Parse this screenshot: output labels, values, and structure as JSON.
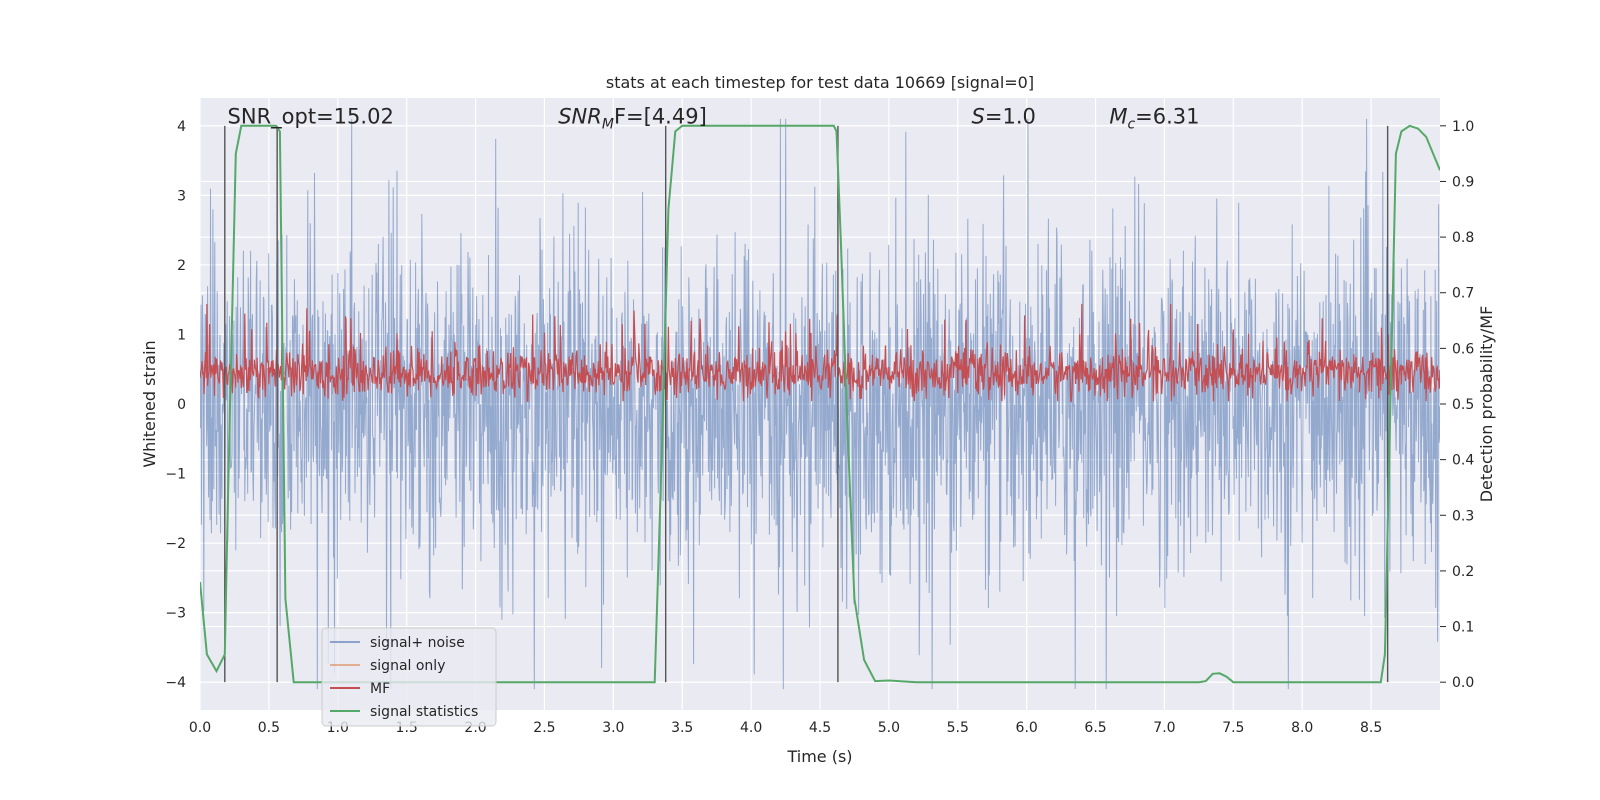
{
  "chart_data": {
    "type": "line",
    "title": "stats at each timestep for test data 10669 [signal=0]",
    "xlabel": "Time (s)",
    "ylabel_left": "Whitened strain",
    "ylabel_right": "Detection probability/MF",
    "xlim": [
      0,
      9.0
    ],
    "ylim_left": [
      -4.4,
      4.4
    ],
    "ylim_right": [
      -0.05,
      1.05
    ],
    "xticks": [
      0.0,
      0.5,
      1.0,
      1.5,
      2.0,
      2.5,
      3.0,
      3.5,
      4.0,
      4.5,
      5.0,
      5.5,
      6.0,
      6.5,
      7.0,
      7.5,
      8.0,
      8.5
    ],
    "xtick_labels": [
      "0.0",
      "0.5",
      "1.0",
      "1.5",
      "2.0",
      "2.5",
      "3.0",
      "3.5",
      "4.0",
      "4.5",
      "5.0",
      "5.5",
      "6.0",
      "6.5",
      "7.0",
      "7.5",
      "8.0",
      "8.5"
    ],
    "yticks_left": [
      -4,
      -3,
      -2,
      -1,
      0,
      1,
      2,
      3,
      4
    ],
    "ytick_labels_left": [
      "−4",
      "−3",
      "−2",
      "−1",
      "0",
      "1",
      "2",
      "3",
      "4"
    ],
    "yticks_right": [
      0.0,
      0.1,
      0.2,
      0.3,
      0.4,
      0.5,
      0.6,
      0.7,
      0.8,
      0.9,
      1.0
    ],
    "ytick_labels_right": [
      "0.0",
      "0.1",
      "0.2",
      "0.3",
      "0.4",
      "0.5",
      "0.6",
      "0.7",
      "0.8",
      "0.9",
      "1.0"
    ],
    "annotations": [
      {
        "name": "snr-opt",
        "text": "SNR_opt=15.02",
        "x": 0.2,
        "y": 4.15
      },
      {
        "name": "snr-mf",
        "prefix": "SNR",
        "sub": "M",
        "suffix": "F=[4.49]",
        "x": 2.6,
        "y": 4.15
      },
      {
        "name": "s-stat",
        "prefix": "S",
        "suffix": "=1.0",
        "x": 5.6,
        "y": 4.15
      },
      {
        "name": "mc",
        "prefix": "M",
        "sub": "c",
        "suffix": "=6.31",
        "x": 6.6,
        "y": 4.15
      }
    ],
    "vertical_lines": [
      0.18,
      0.56,
      3.38,
      4.63,
      8.62
    ],
    "series": [
      {
        "name": "signal+ noise",
        "color": "#4c72b0",
        "axis": "left",
        "description": "whitened noise, amplitude approx ±2.5, peaks to ±4"
      },
      {
        "name": "signal only",
        "color": "#dd8452",
        "axis": "left",
        "description": "not visible (no signal)"
      },
      {
        "name": "MF",
        "color": "#c44e52",
        "axis": "right",
        "description": "matched filter output, approx 0.5 to 0.65"
      },
      {
        "name": "signal statistics",
        "color": "#55a868",
        "axis": "right",
        "x": [
          0.0,
          0.05,
          0.12,
          0.18,
          0.2,
          0.26,
          0.3,
          0.35,
          0.4,
          0.45,
          0.5,
          0.55,
          0.58,
          0.62,
          0.68,
          0.75,
          1.0,
          2.0,
          3.0,
          3.3,
          3.35,
          3.4,
          3.45,
          3.5,
          3.6,
          4.0,
          4.5,
          4.6,
          4.62,
          4.65,
          4.7,
          4.75,
          4.82,
          4.9,
          5.0,
          5.2,
          6.0,
          7.0,
          7.25,
          7.3,
          7.35,
          7.4,
          7.45,
          7.5,
          7.6,
          8.0,
          8.5,
          8.57,
          8.6,
          8.64,
          8.68,
          8.72,
          8.78,
          8.84,
          8.9,
          8.95,
          9.0
        ],
        "y": [
          0.18,
          0.05,
          0.02,
          0.05,
          0.3,
          0.95,
          1.0,
          1.0,
          1.0,
          1.0,
          1.0,
          1.0,
          0.99,
          0.15,
          0.0,
          0.0,
          0.0,
          0.0,
          0.0,
          0.0,
          0.4,
          0.85,
          0.99,
          1.0,
          1.0,
          1.0,
          1.0,
          1.0,
          0.99,
          0.8,
          0.45,
          0.15,
          0.04,
          0.002,
          0.003,
          0.0,
          0.0,
          0.0,
          0.0,
          0.002,
          0.015,
          0.016,
          0.01,
          0.0,
          0.0,
          0.0,
          0.0,
          0.0,
          0.05,
          0.5,
          0.95,
          0.99,
          1.0,
          0.995,
          0.98,
          0.95,
          0.92
        ]
      }
    ],
    "legend": {
      "placement": "lower-left",
      "entries": [
        {
          "label": "signal+ noise",
          "color": "#4c72b0",
          "alpha": 0.6
        },
        {
          "label": "signal only",
          "color": "#dd8452",
          "alpha": 0.6
        },
        {
          "label": "MF",
          "color": "#c44e52",
          "alpha": 1.0
        },
        {
          "label": "signal statistics",
          "color": "#55a868",
          "alpha": 1.0
        }
      ]
    },
    "grid": true,
    "background_color": "#eaeaf2"
  }
}
